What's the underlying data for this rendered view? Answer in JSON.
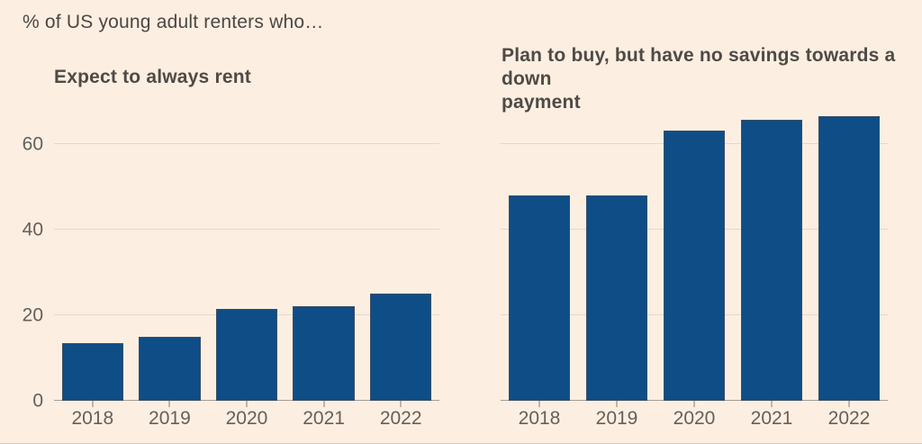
{
  "page": {
    "title": "% of US young adult renters who…",
    "background_color": "#fcefe2",
    "bar_color": "#0f4d87",
    "text_color": "#4c4643"
  },
  "chart_data": [
    {
      "type": "bar",
      "title": "Expect to always rent",
      "categories": [
        "2018",
        "2019",
        "2020",
        "2021",
        "2022"
      ],
      "values": [
        13.5,
        15,
        21.5,
        22,
        25
      ],
      "xlabel": "",
      "ylabel": "",
      "ylim": [
        0,
        70
      ],
      "yticks": [
        0,
        20,
        40,
        60
      ],
      "grid": true,
      "legend": false
    },
    {
      "type": "bar",
      "title": "Plan to buy, but have no savings towards a down payment",
      "title_lines": [
        "Plan to buy, but have no savings towards a down",
        "payment"
      ],
      "categories": [
        "2018",
        "2019",
        "2020",
        "2021",
        "2022"
      ],
      "values": [
        48,
        48,
        63,
        65.5,
        66.5
      ],
      "xlabel": "",
      "ylabel": "",
      "ylim": [
        0,
        70
      ],
      "yticks": [
        0,
        20,
        40,
        60
      ],
      "grid": true,
      "legend": false
    }
  ]
}
